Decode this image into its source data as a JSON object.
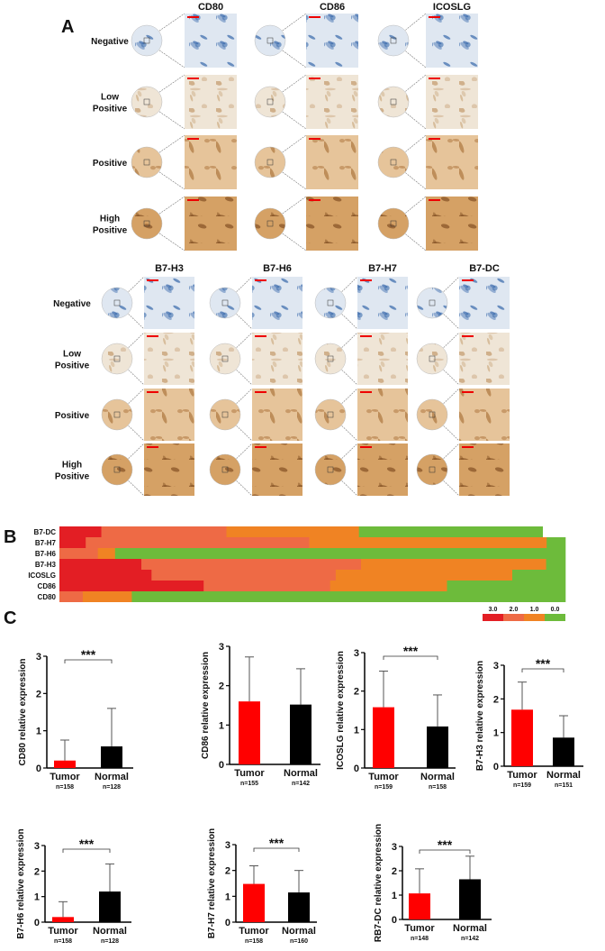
{
  "panel_labels": {
    "a": "A",
    "b": "B",
    "c": "C"
  },
  "ihc_top": {
    "columns": [
      "CD80",
      "CD86",
      "ICOSLG"
    ],
    "rows": [
      [
        "Negative"
      ],
      [
        "Low",
        "Positive"
      ],
      [
        "Positive"
      ],
      [
        "High",
        "Positive"
      ]
    ],
    "stain_levels": [
      "negative",
      "low",
      "positive",
      "high"
    ]
  },
  "ihc_bottom": {
    "columns": [
      "B7-H3",
      "B7-H6",
      "B7-H7",
      "B7-DC"
    ],
    "rows": [
      [
        "Negative"
      ],
      [
        "Low",
        "Positive"
      ],
      [
        "Positive"
      ],
      [
        "High",
        "Positive"
      ]
    ],
    "stain_levels": [
      "negative",
      "low",
      "positive",
      "high"
    ]
  },
  "stain_colors": {
    "negative": {
      "bg": "#dfe7f1",
      "fg": "#3f6fae"
    },
    "low": {
      "bg": "#efe5d6",
      "fg": "#c9a57a"
    },
    "positive": {
      "bg": "#e6c49a",
      "fg": "#b07a42"
    },
    "high": {
      "bg": "#d5a165",
      "fg": "#7e4a1f"
    }
  },
  "chart_data": [
    {
      "type": "heatmap",
      "rows": [
        "B7-DC",
        "B7-H7",
        "B7-H6",
        "B7-H3",
        "ICOSLG",
        "CD86",
        "CD80"
      ],
      "segments_percent": [
        [
          [
            3,
            8.3
          ],
          [
            2,
            24.7
          ],
          [
            1,
            26.2
          ],
          [
            0,
            36.3
          ]
        ],
        [
          [
            3,
            5.2
          ],
          [
            2,
            44.2
          ],
          [
            1,
            46.9
          ],
          [
            0,
            3.7
          ]
        ],
        [
          [
            2,
            7.6
          ],
          [
            1,
            3.4
          ],
          [
            0,
            89.0
          ]
        ],
        [
          [
            3,
            16.2
          ],
          [
            2,
            43.4
          ],
          [
            1,
            36.6
          ],
          [
            0,
            3.8
          ]
        ],
        [
          [
            3,
            18.2
          ],
          [
            2,
            36.4
          ],
          [
            1,
            34.9
          ],
          [
            0,
            10.5
          ]
        ],
        [
          [
            3,
            28.5
          ],
          [
            2,
            25.0
          ],
          [
            1,
            23.1
          ],
          [
            0,
            23.4
          ]
        ],
        [
          [
            2,
            4.6
          ],
          [
            1,
            9.7
          ],
          [
            0,
            85.7
          ]
        ]
      ],
      "legend": {
        "labels": [
          "3.0",
          "2.0",
          "1.0",
          "0.0"
        ],
        "scores": [
          3,
          2,
          1,
          0
        ]
      },
      "colors": {
        "3": "#e31e24",
        "2": "#ee6a45",
        "1": "#f08323",
        "0": "#6dbb3b"
      }
    },
    {
      "type": "bar",
      "ylabel": "CD80 relative expression",
      "categories": [
        "Tumor",
        "Normal"
      ],
      "n_labels": [
        "n=158",
        "n=128"
      ],
      "values": [
        0.2,
        0.58
      ],
      "error_upper": [
        0.75,
        1.6
      ],
      "ylim": [
        0,
        3
      ],
      "yticks": [
        "0",
        "1",
        "2",
        "3"
      ],
      "significance": "***"
    },
    {
      "type": "bar",
      "ylabel": "CD86 relative expression",
      "categories": [
        "Tumor",
        "Normal"
      ],
      "n_labels": [
        "n=155",
        "n=142"
      ],
      "values": [
        1.6,
        1.52
      ],
      "error_upper": [
        2.73,
        2.43
      ],
      "ylim": [
        0,
        3
      ],
      "yticks": [
        "0",
        "1",
        "2",
        "3"
      ],
      "significance": ""
    },
    {
      "type": "bar",
      "ylabel": "ICOSLG relative expression",
      "categories": [
        "Tumor",
        "Normal"
      ],
      "n_labels": [
        "n=159",
        "n=158"
      ],
      "values": [
        1.58,
        1.08
      ],
      "error_upper": [
        2.52,
        1.9
      ],
      "ylim": [
        0,
        3
      ],
      "yticks": [
        "0",
        "1",
        "2",
        "3"
      ],
      "significance": "***"
    },
    {
      "type": "bar",
      "ylabel": "B7-H3 relative expression",
      "categories": [
        "Tumor",
        "Normal"
      ],
      "n_labels": [
        "n=159",
        "n=151"
      ],
      "values": [
        1.68,
        0.85
      ],
      "error_upper": [
        2.5,
        1.5
      ],
      "ylim": [
        0,
        3
      ],
      "yticks": [
        "0",
        "1",
        "2",
        "3"
      ],
      "significance": "***"
    },
    {
      "type": "bar",
      "ylabel": "B7-H6 relative expression",
      "categories": [
        "Tumor",
        "Normal"
      ],
      "n_labels": [
        "n=158",
        "n=128"
      ],
      "values": [
        0.2,
        1.2
      ],
      "error_upper": [
        0.8,
        2.28
      ],
      "ylim": [
        0,
        3
      ],
      "yticks": [
        "0",
        "1",
        "2",
        "3"
      ],
      "significance": "***"
    },
    {
      "type": "bar",
      "ylabel": "B7-H7 relative expression",
      "categories": [
        "Tumor",
        "Normal"
      ],
      "n_labels": [
        "n=158",
        "n=160"
      ],
      "values": [
        1.48,
        1.15
      ],
      "error_upper": [
        2.18,
        2.0
      ],
      "ylim": [
        0,
        3
      ],
      "yticks": [
        "0",
        "1",
        "2",
        "3"
      ],
      "significance": "***"
    },
    {
      "type": "bar",
      "ylabel": "RB7-DC relative expression",
      "categories": [
        "Tumor",
        "Normal"
      ],
      "n_labels": [
        "n=148",
        "n=142"
      ],
      "values": [
        1.07,
        1.65
      ],
      "error_upper": [
        2.08,
        2.6
      ],
      "ylim": [
        0,
        3
      ],
      "yticks": [
        "0",
        "1",
        "2",
        "3"
      ],
      "significance": "***"
    }
  ],
  "bar_colors": [
    "#ff0000",
    "#000000"
  ]
}
